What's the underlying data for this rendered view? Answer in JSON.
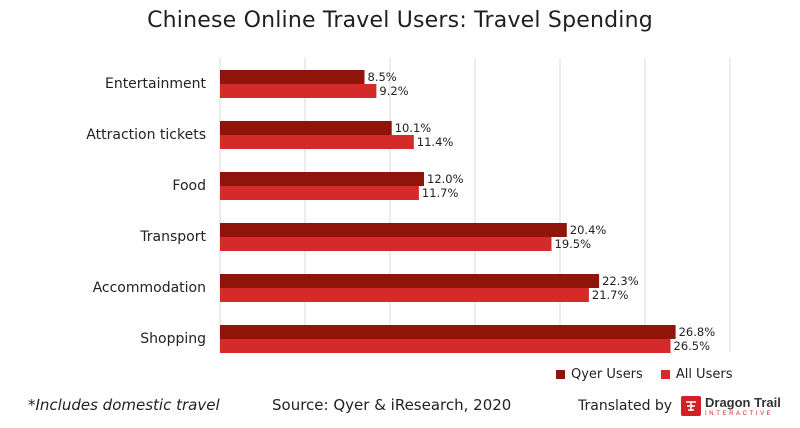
{
  "chart_data": {
    "type": "bar",
    "orientation": "horizontal",
    "title": "Chinese Online Travel Users: Travel Spending",
    "categories": [
      "Entertainment",
      "Attraction tickets",
      "Food",
      "Transport",
      "Accommodation",
      "Shopping"
    ],
    "series": [
      {
        "name": "Qyer Users",
        "color": "#8f1409",
        "values": [
          8.5,
          10.1,
          12.0,
          20.4,
          22.3,
          26.8
        ],
        "labels": [
          "8.5%",
          "10.1%",
          "12.0%",
          "20.4%",
          "22.3%",
          "26.8%"
        ]
      },
      {
        "name": "All Users",
        "color": "#d42a2a",
        "values": [
          9.2,
          11.4,
          11.7,
          19.5,
          21.7,
          26.5
        ],
        "labels": [
          "9.2%",
          "11.4%",
          "11.7%",
          "19.5%",
          "21.7%",
          "26.5%"
        ]
      }
    ],
    "xlim": [
      0,
      30
    ],
    "grid": true,
    "legend_position": "bottom-right"
  },
  "footnote": "*Includes domestic travel",
  "source": "Source: Qyer & iResearch, 2020",
  "credit": {
    "label": "Translated by",
    "logo_name": "Dragon Trail",
    "logo_sub": "INTERACTIVE"
  }
}
